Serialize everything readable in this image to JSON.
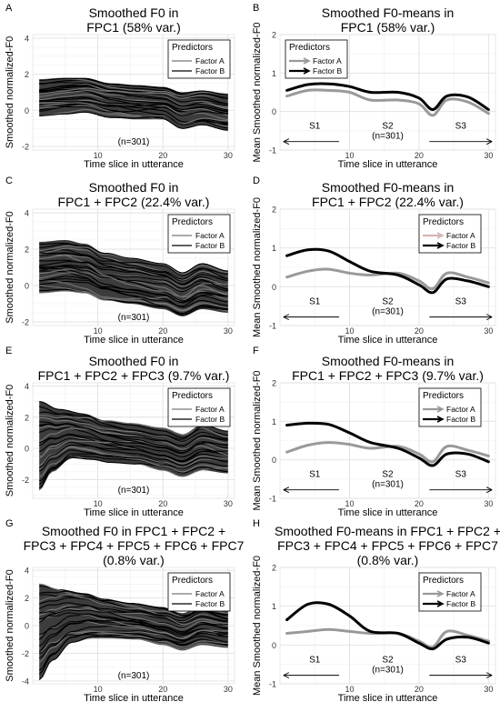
{
  "figure": {
    "ylabel_left": "Smoothed normalized-F0",
    "ylabel_right": "Mean Smoothed normalized-F0",
    "xlabel": "Time slice in utterance",
    "legend_title": "Predictors",
    "legend_a": "Factor A",
    "legend_b": "Factor B",
    "n_label": "(n=301)",
    "segments": [
      "S1",
      "S2",
      "S3"
    ]
  },
  "colors": {
    "factor_a": "#999999",
    "factor_b": "#000000",
    "band": "#3c3c3c",
    "arrow_a_fpc2": "#d8b4b4"
  },
  "chart_data": [
    {
      "panel": "A",
      "type": "line",
      "title": [
        "Smoothed F0 in",
        "FPC1 (58% var.)"
      ],
      "xlim": [
        0,
        31
      ],
      "ylim": [
        -2.2,
        4.2
      ],
      "x_ticks": [
        10,
        20,
        30
      ],
      "y_ticks": [
        -2,
        0,
        2,
        4
      ],
      "series": [
        {
          "name": "Factor A",
          "envelope_upper": [
            [
              1,
              1.7
            ],
            [
              5,
              1.8
            ],
            [
              8,
              1.8
            ],
            [
              12,
              1.5
            ],
            [
              16,
              1.4
            ],
            [
              20,
              1.3
            ],
            [
              23,
              1.0
            ],
            [
              26,
              1.1
            ],
            [
              30,
              0.9
            ]
          ],
          "envelope_lower": [
            [
              1,
              -0.3
            ],
            [
              5,
              -0.2
            ],
            [
              8,
              -0.1
            ],
            [
              12,
              -0.4
            ],
            [
              16,
              -0.5
            ],
            [
              20,
              -0.5
            ],
            [
              23,
              -1.0
            ],
            [
              26,
              -0.8
            ],
            [
              30,
              -1.1
            ]
          ]
        }
      ]
    },
    {
      "panel": "B",
      "type": "line",
      "title": [
        "Smoothed F0-means in",
        "FPC1 (58% var.)"
      ],
      "xlim": [
        0,
        31
      ],
      "ylim": [
        -1,
        2
      ],
      "x_ticks": [
        10,
        20,
        30
      ],
      "y_ticks": [
        -1,
        0,
        1,
        2
      ],
      "series": [
        {
          "name": "Factor A",
          "x": [
            1,
            4,
            7,
            10,
            13,
            17,
            20,
            22,
            24,
            27,
            30
          ],
          "y": [
            0.4,
            0.55,
            0.55,
            0.5,
            0.3,
            0.3,
            0.2,
            -0.1,
            0.3,
            0.25,
            -0.05
          ]
        },
        {
          "name": "Factor B",
          "x": [
            1,
            4,
            7,
            10,
            13,
            17,
            20,
            22,
            24,
            27,
            30
          ],
          "y": [
            0.55,
            0.7,
            0.72,
            0.65,
            0.5,
            0.5,
            0.35,
            0.05,
            0.4,
            0.38,
            0.05
          ]
        }
      ]
    },
    {
      "panel": "C",
      "type": "line",
      "title": [
        "Smoothed F0 in",
        "FPC1 + FPC2 (22.4% var.)"
      ],
      "xlim": [
        0,
        31
      ],
      "ylim": [
        -2.2,
        4.2
      ],
      "x_ticks": [
        10,
        20,
        30
      ],
      "y_ticks": [
        -2,
        0,
        2,
        4
      ],
      "series": [
        {
          "name": "Factor A",
          "envelope_upper": [
            [
              1,
              2.4
            ],
            [
              5,
              2.5
            ],
            [
              8,
              2.3
            ],
            [
              11,
              1.8
            ],
            [
              15,
              1.5
            ],
            [
              20,
              1.2
            ],
            [
              23,
              0.7
            ],
            [
              26,
              1.2
            ],
            [
              30,
              0.8
            ]
          ],
          "envelope_lower": [
            [
              1,
              -0.4
            ],
            [
              5,
              -0.3
            ],
            [
              8,
              -0.4
            ],
            [
              11,
              -0.8
            ],
            [
              15,
              -1.0
            ],
            [
              20,
              -1.3
            ],
            [
              23,
              -1.7
            ],
            [
              26,
              -1.3
            ],
            [
              30,
              -1.5
            ]
          ]
        }
      ]
    },
    {
      "panel": "D",
      "type": "line",
      "title": [
        "Smoothed F0-means in",
        "FPC1 + FPC2 (22.4% var.)"
      ],
      "xlim": [
        0,
        31
      ],
      "ylim": [
        -1,
        2
      ],
      "x_ticks": [
        10,
        20,
        30
      ],
      "y_ticks": [
        -1,
        0,
        1,
        2
      ],
      "series": [
        {
          "name": "Factor A",
          "x": [
            1,
            4,
            7,
            10,
            13,
            17,
            20,
            22,
            24,
            27,
            30
          ],
          "y": [
            0.25,
            0.4,
            0.45,
            0.35,
            0.3,
            0.35,
            0.15,
            -0.05,
            0.35,
            0.25,
            0.1
          ]
        },
        {
          "name": "Factor B",
          "x": [
            1,
            4,
            7,
            10,
            13,
            17,
            20,
            22,
            24,
            27,
            30
          ],
          "y": [
            0.8,
            0.95,
            0.92,
            0.65,
            0.4,
            0.3,
            0.05,
            -0.15,
            0.2,
            0.15,
            0.0
          ]
        }
      ]
    },
    {
      "panel": "E",
      "type": "line",
      "title": [
        "Smoothed F0 in",
        "FPC1 + FPC2 + FPC3 (9.7% var.)"
      ],
      "xlim": [
        0,
        31
      ],
      "ylim": [
        -3.2,
        4.2
      ],
      "x_ticks": [
        10,
        20,
        30
      ],
      "y_ticks": [
        -2,
        0,
        2,
        4
      ],
      "series": [
        {
          "name": "Factor A",
          "envelope_upper": [
            [
              1,
              3.0
            ],
            [
              4,
              2.5
            ],
            [
              8,
              2.2
            ],
            [
              11,
              1.8
            ],
            [
              15,
              1.6
            ],
            [
              20,
              1.3
            ],
            [
              23,
              0.9
            ],
            [
              26,
              1.5
            ],
            [
              30,
              1.1
            ]
          ],
          "envelope_lower": [
            [
              1,
              -2.7
            ],
            [
              3,
              -1.5
            ],
            [
              6,
              -0.6
            ],
            [
              9,
              -0.7
            ],
            [
              12,
              -0.9
            ],
            [
              16,
              -1.0
            ],
            [
              20,
              -1.4
            ],
            [
              23,
              -1.8
            ],
            [
              26,
              -1.4
            ],
            [
              30,
              -1.6
            ]
          ]
        }
      ]
    },
    {
      "panel": "F",
      "type": "line",
      "title": [
        "Smoothed F0-means in",
        "FPC1 + FPC2 + FPC3 (9.7% var.)"
      ],
      "xlim": [
        0,
        31
      ],
      "ylim": [
        -1,
        2
      ],
      "x_ticks": [
        10,
        20,
        30
      ],
      "y_ticks": [
        -1,
        0,
        1,
        2
      ],
      "series": [
        {
          "name": "Factor A",
          "x": [
            1,
            4,
            7,
            10,
            13,
            17,
            20,
            22,
            24,
            27,
            30
          ],
          "y": [
            0.2,
            0.38,
            0.45,
            0.4,
            0.3,
            0.35,
            0.15,
            -0.05,
            0.35,
            0.25,
            0.1
          ]
        },
        {
          "name": "Factor B",
          "x": [
            1,
            4,
            7,
            10,
            13,
            17,
            20,
            22,
            24,
            27,
            30
          ],
          "y": [
            0.9,
            0.95,
            0.92,
            0.7,
            0.45,
            0.3,
            0.05,
            -0.15,
            0.15,
            0.15,
            -0.05
          ]
        }
      ]
    },
    {
      "panel": "G",
      "type": "line",
      "title": [
        "Smoothed F0 in FPC1 + FPC2 +",
        "FPC3 + FPC4 + FPC5 + FPC6 + FPC7",
        "(0.8% var.)"
      ],
      "xlim": [
        0,
        31
      ],
      "ylim": [
        -4.2,
        4.2
      ],
      "x_ticks": [
        10,
        20,
        30
      ],
      "y_ticks": [
        -4,
        -2,
        0,
        2,
        4
      ],
      "series": [
        {
          "name": "Factor A",
          "envelope_upper": [
            [
              1,
              3.0
            ],
            [
              4,
              2.6
            ],
            [
              8,
              2.3
            ],
            [
              11,
              1.9
            ],
            [
              15,
              1.6
            ],
            [
              20,
              1.3
            ],
            [
              23,
              0.9
            ],
            [
              26,
              1.5
            ],
            [
              30,
              1.1
            ]
          ],
          "envelope_lower": [
            [
              1,
              -3.9
            ],
            [
              3,
              -2.5
            ],
            [
              6,
              -1.2
            ],
            [
              9,
              -0.9
            ],
            [
              12,
              -0.9
            ],
            [
              16,
              -1.0
            ],
            [
              20,
              -1.4
            ],
            [
              23,
              -1.8
            ],
            [
              26,
              -1.4
            ],
            [
              30,
              -1.6
            ]
          ]
        }
      ]
    },
    {
      "panel": "H",
      "type": "line",
      "title": [
        "Smoothed F0-means in FPC1 + FPC2 +",
        "FPC3 + FPC4 + FPC5 + FPC6 + FPC7",
        "(0.8% var.)"
      ],
      "xlim": [
        0,
        31
      ],
      "ylim": [
        -1,
        2
      ],
      "x_ticks": [
        10,
        20,
        30
      ],
      "y_ticks": [
        -1,
        0,
        1,
        2
      ],
      "series": [
        {
          "name": "Factor A",
          "x": [
            1,
            4,
            7,
            10,
            13,
            17,
            20,
            22,
            24,
            27,
            30
          ],
          "y": [
            0.3,
            0.35,
            0.4,
            0.35,
            0.3,
            0.3,
            0.1,
            -0.05,
            0.35,
            0.25,
            0.1
          ]
        },
        {
          "name": "Factor B",
          "x": [
            1,
            4,
            7,
            10,
            13,
            17,
            20,
            22,
            24,
            27,
            30
          ],
          "y": [
            0.65,
            1.05,
            1.05,
            0.75,
            0.35,
            0.3,
            0.05,
            -0.1,
            0.15,
            0.2,
            0.05
          ]
        }
      ]
    }
  ]
}
